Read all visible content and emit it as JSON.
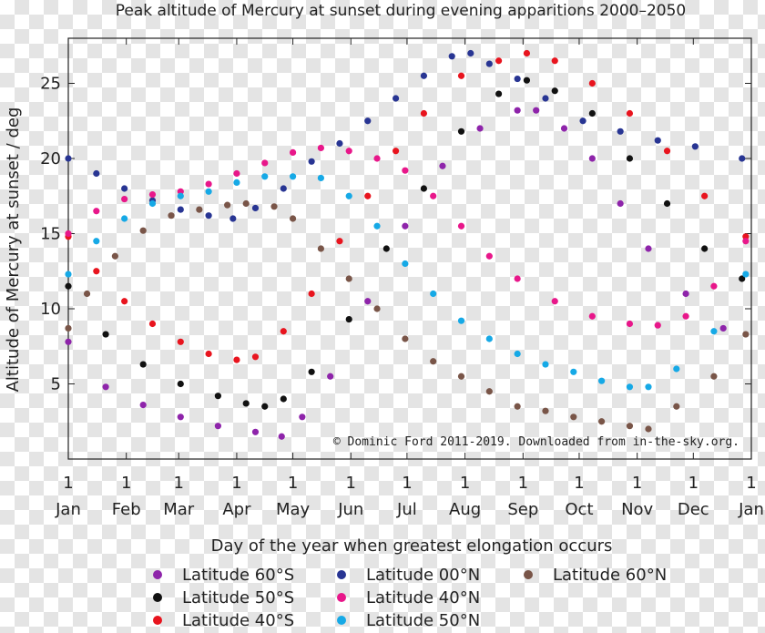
{
  "chart_data": {
    "type": "scatter",
    "title": "Peak altitude of Mercury at sunset during evening apparitions 2000–2050",
    "xlabel": "Day of the year when greatest elongation occurs",
    "ylabel": "Altitude of Mercury at sunset / deg",
    "credit": "© Dominic Ford 2011-2019. Downloaded from in-the-sky.org.",
    "xlim": [
      0,
      365
    ],
    "ylim": [
      0,
      28
    ],
    "x_ticks": [
      {
        "day": 0,
        "num": "1",
        "month": "Jan"
      },
      {
        "day": 31,
        "num": "1",
        "month": "Feb"
      },
      {
        "day": 59,
        "num": "1",
        "month": "Mar"
      },
      {
        "day": 90,
        "num": "1",
        "month": "Apr"
      },
      {
        "day": 120,
        "num": "1",
        "month": "May"
      },
      {
        "day": 151,
        "num": "1",
        "month": "Jun"
      },
      {
        "day": 181,
        "num": "1",
        "month": "Jul"
      },
      {
        "day": 212,
        "num": "1",
        "month": "Aug"
      },
      {
        "day": 243,
        "num": "1",
        "month": "Sep"
      },
      {
        "day": 273,
        "num": "1",
        "month": "Oct"
      },
      {
        "day": 304,
        "num": "1",
        "month": "Nov"
      },
      {
        "day": 334,
        "num": "1",
        "month": "Dec"
      },
      {
        "day": 365,
        "num": "1",
        "month": "Jan"
      }
    ],
    "y_ticks": [
      5,
      10,
      15,
      20,
      25
    ],
    "grid": false,
    "legend_position": "bottom",
    "series": [
      {
        "name": "Latitude 60°S",
        "color": "#8e24aa",
        "points": [
          [
            0,
            7.8
          ],
          [
            20,
            4.8
          ],
          [
            40,
            3.6
          ],
          [
            60,
            2.8
          ],
          [
            80,
            2.2
          ],
          [
            100,
            1.8
          ],
          [
            114,
            1.5
          ],
          [
            125,
            2.8
          ],
          [
            140,
            5.5
          ],
          [
            160,
            10.5
          ],
          [
            180,
            15.5
          ],
          [
            200,
            19.5
          ],
          [
            220,
            22.0
          ],
          [
            240,
            23.2
          ],
          [
            250,
            23.2
          ],
          [
            265,
            22.0
          ],
          [
            280,
            20.0
          ],
          [
            295,
            17.0
          ],
          [
            310,
            14.0
          ],
          [
            330,
            11.0
          ],
          [
            350,
            8.7
          ]
        ]
      },
      {
        "name": "Latitude 50°S",
        "color": "#111111",
        "points": [
          [
            0,
            11.5
          ],
          [
            20,
            8.3
          ],
          [
            40,
            6.3
          ],
          [
            60,
            5.0
          ],
          [
            80,
            4.2
          ],
          [
            95,
            3.7
          ],
          [
            105,
            3.5
          ],
          [
            115,
            4.0
          ],
          [
            130,
            5.8
          ],
          [
            150,
            9.3
          ],
          [
            170,
            14.0
          ],
          [
            190,
            18.0
          ],
          [
            210,
            21.8
          ],
          [
            230,
            24.3
          ],
          [
            245,
            25.2
          ],
          [
            260,
            24.5
          ],
          [
            280,
            23.0
          ],
          [
            300,
            20.0
          ],
          [
            320,
            17.0
          ],
          [
            340,
            14.0
          ],
          [
            360,
            12.0
          ]
        ]
      },
      {
        "name": "Latitude 40°S",
        "color": "#e8141e",
        "points": [
          [
            0,
            14.8
          ],
          [
            15,
            12.5
          ],
          [
            30,
            10.5
          ],
          [
            45,
            9.0
          ],
          [
            60,
            7.8
          ],
          [
            75,
            7.0
          ],
          [
            90,
            6.6
          ],
          [
            100,
            6.8
          ],
          [
            115,
            8.5
          ],
          [
            130,
            11.0
          ],
          [
            145,
            14.5
          ],
          [
            160,
            17.5
          ],
          [
            175,
            20.5
          ],
          [
            190,
            23.0
          ],
          [
            210,
            25.5
          ],
          [
            230,
            26.5
          ],
          [
            245,
            27.0
          ],
          [
            260,
            26.5
          ],
          [
            280,
            25.0
          ],
          [
            300,
            23.0
          ],
          [
            320,
            20.5
          ],
          [
            340,
            17.5
          ],
          [
            362,
            14.8
          ]
        ]
      },
      {
        "name": "Latitude 00°N",
        "color": "#283593",
        "points": [
          [
            0,
            20.0
          ],
          [
            15,
            19.0
          ],
          [
            30,
            18.0
          ],
          [
            45,
            17.2
          ],
          [
            60,
            16.6
          ],
          [
            75,
            16.2
          ],
          [
            88,
            16.0
          ],
          [
            100,
            16.7
          ],
          [
            115,
            18.0
          ],
          [
            130,
            19.8
          ],
          [
            145,
            21.0
          ],
          [
            160,
            22.5
          ],
          [
            175,
            24.0
          ],
          [
            190,
            25.5
          ],
          [
            205,
            26.8
          ],
          [
            215,
            27.0
          ],
          [
            225,
            26.3
          ],
          [
            240,
            25.3
          ],
          [
            255,
            24.0
          ],
          [
            275,
            22.5
          ],
          [
            295,
            21.8
          ],
          [
            315,
            21.2
          ],
          [
            335,
            20.8
          ],
          [
            360,
            20.0
          ]
        ]
      },
      {
        "name": "Latitude 40°N",
        "color": "#e8178a",
        "points": [
          [
            0,
            15.0
          ],
          [
            15,
            16.5
          ],
          [
            30,
            17.3
          ],
          [
            45,
            17.6
          ],
          [
            60,
            17.8
          ],
          [
            75,
            18.3
          ],
          [
            90,
            19.0
          ],
          [
            105,
            19.7
          ],
          [
            120,
            20.4
          ],
          [
            135,
            20.7
          ],
          [
            150,
            20.5
          ],
          [
            165,
            20.0
          ],
          [
            180,
            19.2
          ],
          [
            195,
            17.5
          ],
          [
            210,
            15.5
          ],
          [
            225,
            13.5
          ],
          [
            240,
            12.0
          ],
          [
            260,
            10.5
          ],
          [
            280,
            9.5
          ],
          [
            300,
            9.0
          ],
          [
            315,
            8.9
          ],
          [
            330,
            9.5
          ],
          [
            345,
            11.5
          ],
          [
            362,
            14.5
          ]
        ]
      },
      {
        "name": "Latitude 50°N",
        "color": "#16a9e6",
        "points": [
          [
            0,
            12.3
          ],
          [
            15,
            14.5
          ],
          [
            30,
            16.0
          ],
          [
            45,
            17.0
          ],
          [
            60,
            17.5
          ],
          [
            75,
            17.8
          ],
          [
            90,
            18.4
          ],
          [
            105,
            18.8
          ],
          [
            120,
            18.8
          ],
          [
            135,
            18.7
          ],
          [
            150,
            17.5
          ],
          [
            165,
            15.5
          ],
          [
            180,
            13.0
          ],
          [
            195,
            11.0
          ],
          [
            210,
            9.2
          ],
          [
            225,
            8.0
          ],
          [
            240,
            7.0
          ],
          [
            255,
            6.3
          ],
          [
            270,
            5.8
          ],
          [
            285,
            5.2
          ],
          [
            300,
            4.8
          ],
          [
            310,
            4.8
          ],
          [
            325,
            6.0
          ],
          [
            345,
            8.5
          ],
          [
            362,
            12.3
          ]
        ]
      },
      {
        "name": "Latitude 60°N",
        "color": "#795548",
        "points": [
          [
            0,
            8.7
          ],
          [
            10,
            11.0
          ],
          [
            25,
            13.5
          ],
          [
            40,
            15.2
          ],
          [
            55,
            16.2
          ],
          [
            70,
            16.6
          ],
          [
            85,
            16.9
          ],
          [
            95,
            17.0
          ],
          [
            110,
            16.8
          ],
          [
            120,
            16.0
          ],
          [
            135,
            14.0
          ],
          [
            150,
            12.0
          ],
          [
            165,
            10.0
          ],
          [
            180,
            8.0
          ],
          [
            195,
            6.5
          ],
          [
            210,
            5.5
          ],
          [
            225,
            4.5
          ],
          [
            240,
            3.5
          ],
          [
            255,
            3.2
          ],
          [
            270,
            2.8
          ],
          [
            285,
            2.5
          ],
          [
            300,
            2.2
          ],
          [
            310,
            2.0
          ],
          [
            325,
            3.5
          ],
          [
            345,
            5.5
          ],
          [
            362,
            8.3
          ]
        ]
      }
    ]
  }
}
